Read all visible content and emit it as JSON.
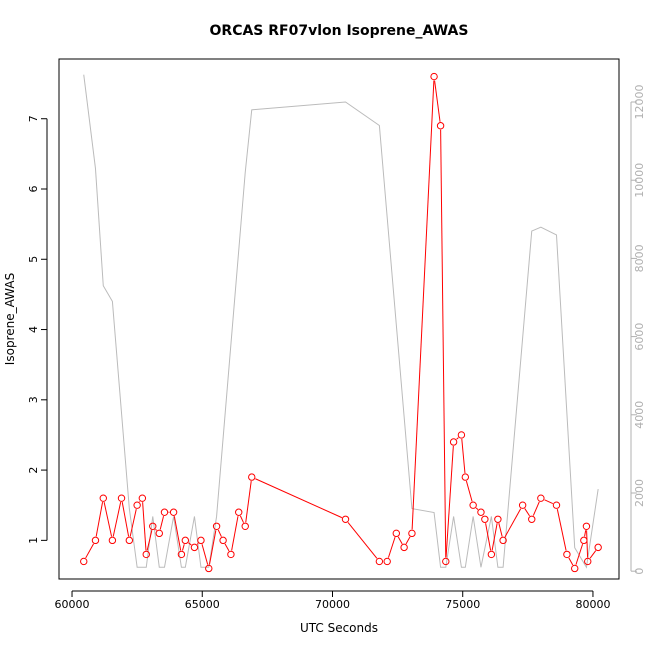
{
  "chart_data": {
    "type": "line",
    "title": "ORCAS RF07vlon Isoprene_AWAS",
    "xlabel": "UTC Seconds",
    "ylabel": "Isoprene_AWAS",
    "xlim": [
      59500,
      81000
    ],
    "ylim": [
      0.45,
      7.85
    ],
    "y2lim": [
      -200,
      13100
    ],
    "x_ticks": [
      60000,
      65000,
      70000,
      75000,
      80000
    ],
    "y_ticks": [
      1,
      2,
      3,
      4,
      5,
      6,
      7
    ],
    "y2_ticks": [
      0,
      2000,
      4000,
      6000,
      8000,
      10000,
      12000
    ],
    "series": [
      {
        "role": "primary",
        "color": "#ff0000",
        "marker": "open-circle",
        "x": [
          60450,
          60900,
          61200,
          61550,
          61900,
          62200,
          62500,
          62700,
          62850,
          63100,
          63350,
          63550,
          63900,
          64200,
          64350,
          64700,
          64950,
          65250,
          65550,
          65800,
          66100,
          66400,
          66650,
          66900,
          70500,
          71800,
          72100,
          72450,
          72750,
          73050,
          73900,
          74150,
          74350,
          74650,
          74950,
          75100,
          75400,
          75700,
          75850,
          76100,
          76350,
          76550,
          77300,
          77650,
          78000,
          78600,
          79000,
          79300,
          79650,
          79750,
          79800,
          80200
        ],
        "y": [
          0.7,
          1.0,
          1.6,
          1.0,
          1.6,
          1.0,
          1.5,
          1.6,
          0.8,
          1.2,
          1.1,
          1.4,
          1.4,
          0.8,
          1.0,
          0.9,
          1.0,
          0.6,
          1.2,
          1.0,
          0.8,
          1.4,
          1.2,
          1.9,
          1.3,
          0.7,
          0.7,
          1.1,
          0.9,
          1.1,
          7.6,
          6.9,
          0.7,
          2.4,
          2.5,
          1.9,
          1.5,
          1.4,
          1.3,
          0.8,
          1.3,
          1.0,
          1.5,
          1.3,
          1.6,
          1.5,
          0.8,
          0.6,
          1.0,
          1.2,
          0.7,
          0.9
        ]
      },
      {
        "role": "secondary",
        "color": "#bbbbbb",
        "axis": "right",
        "x": [
          60450,
          60900,
          61200,
          61550,
          62200,
          62500,
          62850,
          63100,
          63350,
          63550,
          63900,
          64200,
          64350,
          64700,
          64950,
          65250,
          65550,
          66650,
          66900,
          70500,
          71800,
          73050,
          73900,
          74150,
          74350,
          74650,
          74950,
          75100,
          75400,
          75700,
          76100,
          76350,
          76550,
          77650,
          78000,
          78600,
          79300,
          79750,
          80200
        ],
        "y": [
          12700,
          10300,
          7300,
          6900,
          1600,
          100,
          100,
          1400,
          100,
          100,
          1400,
          100,
          100,
          1400,
          100,
          100,
          1400,
          10200,
          11800,
          12000,
          11400,
          1600,
          1500,
          100,
          100,
          1400,
          100,
          100,
          1400,
          100,
          1400,
          100,
          100,
          8700,
          8800,
          8600,
          600,
          100,
          2100
        ]
      }
    ]
  }
}
